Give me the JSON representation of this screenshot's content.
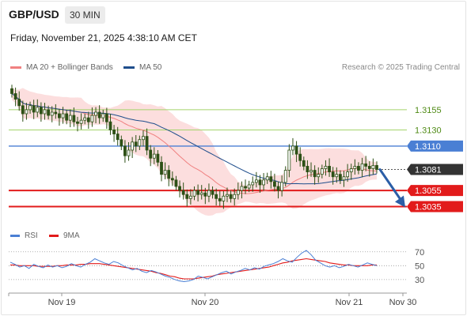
{
  "header": {
    "symbol": "GBP/USD",
    "timeframe": "30 MIN",
    "datetime": "Friday, November 21, 2025 4:38:10 AM CET"
  },
  "legend": {
    "ma20_label": "MA 20 + Bollinger Bands",
    "ma50_label": "MA 50",
    "credit": "Research © 2025 Trading Central"
  },
  "colors": {
    "ma20": "#f08080",
    "ma50": "#1f4e8c",
    "bollinger_fill": "#fbd3d3",
    "candle": "#2d5016",
    "resistance_green": "#a4d36b",
    "pivot_blue": "#4a7fd4",
    "support_red": "#e21b1b",
    "last_price_bg": "#333333",
    "arrow": "#2b5ea7",
    "rsi": "#4a7fd4",
    "rsi_ma": "#e21b1b"
  },
  "levels": [
    {
      "price": "1.3155",
      "kind": "resistance-green"
    },
    {
      "price": "1.3130",
      "kind": "resistance-green"
    },
    {
      "price": "1.3110",
      "kind": "pivot-blue"
    },
    {
      "price": "1.3081",
      "kind": "last-price"
    },
    {
      "price": "1.3055",
      "kind": "support-red"
    },
    {
      "price": "1.3035",
      "kind": "support-red"
    }
  ],
  "rsi": {
    "label": "RSI",
    "ma_label": "9MA",
    "ticks": [
      "70",
      "50",
      "30"
    ]
  },
  "xaxis": {
    "labels": [
      "Nov 19",
      "Nov 20",
      "Nov 21",
      "Nov 30"
    ]
  },
  "chart_data": [
    {
      "type": "candlestick",
      "title": "",
      "y_range": [
        1.3015,
        1.3195
      ],
      "series": [
        {
          "name": "MA 20 + Bollinger Bands"
        },
        {
          "name": "MA 50"
        }
      ],
      "close": [
        1.3175,
        1.3168,
        1.316,
        1.315,
        1.3155,
        1.316,
        1.3152,
        1.3158,
        1.315,
        1.3155,
        1.3148,
        1.3152,
        1.315,
        1.3145,
        1.315,
        1.3142,
        1.3148,
        1.314,
        1.3138,
        1.3142,
        1.3145,
        1.314,
        1.3148,
        1.3152,
        1.3145,
        1.315,
        1.314,
        1.313,
        1.3125,
        1.3118,
        1.311,
        1.3098,
        1.3105,
        1.3115,
        1.311,
        1.3118,
        1.3122,
        1.3105,
        1.3095,
        1.31,
        1.309,
        1.3075,
        1.308,
        1.307,
        1.3068,
        1.306,
        1.3055,
        1.305,
        1.3045,
        1.3048,
        1.3055,
        1.305,
        1.3052,
        1.3048,
        1.3055,
        1.305,
        1.3045,
        1.3042,
        1.3048,
        1.305,
        1.3045,
        1.305,
        1.3055,
        1.306,
        1.3058,
        1.3062,
        1.3065,
        1.3068,
        1.3062,
        1.3068,
        1.3072,
        1.3066,
        1.306,
        1.3055,
        1.3065,
        1.308,
        1.3105,
        1.311,
        1.31,
        1.3092,
        1.3085,
        1.3078,
        1.308,
        1.3072,
        1.3075,
        1.3082,
        1.3085,
        1.3078,
        1.3072,
        1.3075,
        1.3068,
        1.3072,
        1.3078,
        1.3082,
        1.3085,
        1.308,
        1.3088,
        1.3085,
        1.3082,
        1.3086,
        1.3081
      ],
      "levels": [
        1.3155,
        1.313,
        1.311,
        1.3081,
        1.3055,
        1.3035
      ]
    },
    {
      "type": "line",
      "title": "",
      "y_ticks": [
        70,
        50,
        30
      ],
      "y_range": [
        15,
        80
      ],
      "series": [
        {
          "name": "RSI",
          "values": [
            55,
            52,
            48,
            50,
            46,
            52,
            49,
            47,
            51,
            48,
            50,
            47,
            49,
            53,
            50,
            48,
            52,
            55,
            60,
            57,
            54,
            52,
            56,
            54,
            50,
            47,
            44,
            46,
            42,
            40,
            43,
            41,
            38,
            35,
            33,
            30,
            28,
            27,
            28,
            30,
            35,
            33,
            31,
            34,
            37,
            40,
            42,
            38,
            41,
            43,
            46,
            44,
            47,
            45,
            49,
            51,
            53,
            56,
            60,
            57,
            55,
            62,
            68,
            72,
            66,
            58,
            54,
            50,
            48,
            50,
            47,
            49,
            52,
            50,
            48,
            51,
            54,
            52,
            50
          ]
        },
        {
          "name": "9MA",
          "values": [
            51,
            51,
            50,
            50,
            50,
            50,
            49,
            49,
            49,
            49,
            50,
            50,
            51,
            51,
            51,
            52,
            52,
            53,
            53,
            53,
            52,
            51,
            50,
            49,
            48,
            47,
            46,
            45,
            44,
            43,
            42,
            40,
            39,
            37,
            35,
            34,
            32,
            31,
            31,
            31,
            32,
            33,
            34,
            35,
            37,
            38,
            39,
            40,
            41,
            42,
            43,
            44,
            45,
            46,
            47,
            48,
            50,
            52,
            54,
            55,
            57,
            58,
            59,
            60,
            59,
            58,
            57,
            56,
            54,
            53,
            52,
            51,
            51,
            50,
            50,
            50,
            50,
            51,
            51
          ]
        }
      ]
    }
  ]
}
